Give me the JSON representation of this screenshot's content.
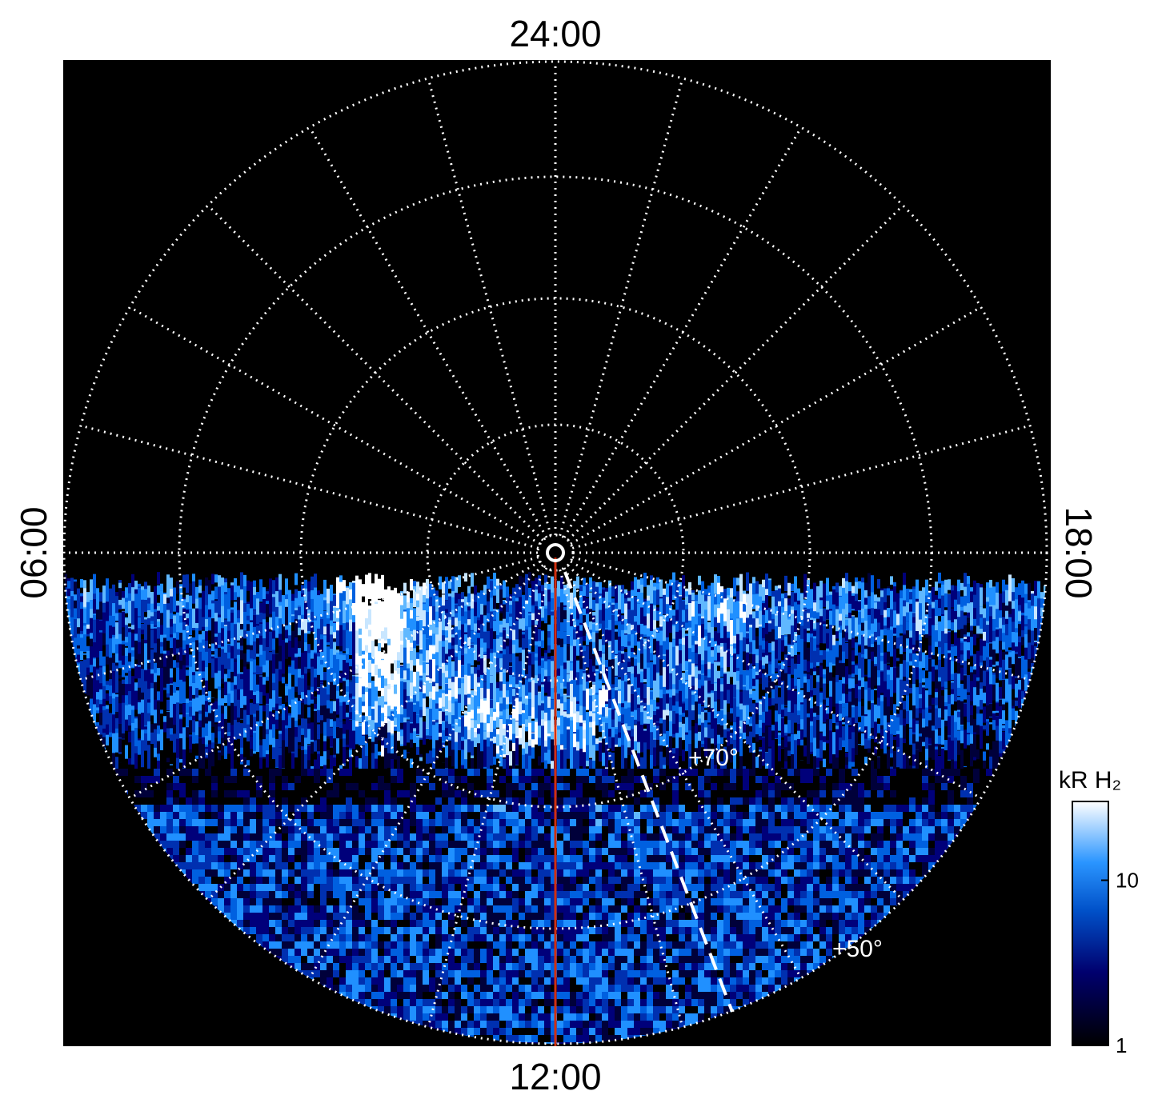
{
  "labels": {
    "top": "24:00",
    "bottom": "12:00",
    "left": "06:00",
    "right": "18:00"
  },
  "annotations": [
    "+70°",
    "+50°"
  ],
  "colorbar": {
    "title": "kR H₂",
    "scale": "log",
    "lim": [
      1,
      30
    ],
    "ticks": [
      1,
      10
    ]
  }
}
